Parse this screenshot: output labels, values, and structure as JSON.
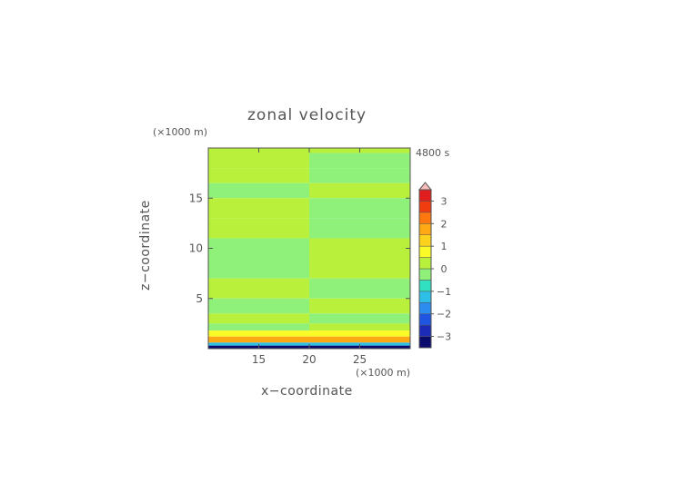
{
  "chart_data": {
    "type": "heatmap",
    "title": "zonal velocity",
    "time_label": "4800 s",
    "xlabel": "x−coordinate",
    "ylabel": "z−coordinate",
    "x_unit": "(×1000 m)",
    "y_unit": "(×1000 m)",
    "xlim": [
      10,
      30
    ],
    "ylim": [
      0,
      20
    ],
    "x_ticks": [
      15,
      20,
      25
    ],
    "y_ticks": [
      5,
      10,
      15
    ],
    "x_tick_labels": [
      "15",
      "20",
      "25"
    ],
    "y_tick_labels": [
      "5",
      "10",
      "15"
    ],
    "colorbar": {
      "min": -3.5,
      "max": 3.5,
      "step": 0.5,
      "extend": "max",
      "tick_values": [
        3,
        2,
        1,
        0,
        -1,
        -2,
        -3
      ],
      "tick_labels": [
        "3",
        "2",
        "1",
        "0",
        "−1",
        "−2",
        "−3"
      ],
      "colors": [
        "#0b0b6e",
        "#1c2bb8",
        "#1f55e0",
        "#2d8cf0",
        "#2dbfe8",
        "#31e0c0",
        "#8ff07a",
        "#b8f03c",
        "#fafa28",
        "#ffd21e",
        "#ffaa14",
        "#ff780f",
        "#f03c0f",
        "#e01e1e",
        "#f08c8c",
        "#f7bcbc"
      ]
    },
    "bands_z": [
      {
        "z": [
          19.5,
          20.0
        ],
        "left": 0.0,
        "right": 0.0
      },
      {
        "z": [
          18.0,
          19.5
        ],
        "left": 0.3,
        "right": -0.2
      },
      {
        "z": [
          16.5,
          18.0
        ],
        "left": 0.3,
        "right": -0.2
      },
      {
        "z": [
          15.0,
          16.5
        ],
        "left": -0.2,
        "right": 0.3
      },
      {
        "z": [
          13.0,
          15.0
        ],
        "left": 0.3,
        "right": -0.2
      },
      {
        "z": [
          11.0,
          13.0
        ],
        "left": 0.3,
        "right": -0.2
      },
      {
        "z": [
          9.0,
          11.0
        ],
        "left": -0.2,
        "right": 0.3
      },
      {
        "z": [
          7.0,
          9.0
        ],
        "left": -0.2,
        "right": 0.3
      },
      {
        "z": [
          5.0,
          7.0
        ],
        "left": 0.3,
        "right": -0.2
      },
      {
        "z": [
          3.5,
          5.0
        ],
        "left": -0.2,
        "right": 0.2
      },
      {
        "z": [
          2.5,
          3.5
        ],
        "left": 0.2,
        "right": -0.2
      },
      {
        "z": [
          1.8,
          2.5
        ],
        "left": -0.3,
        "right": 0.2
      },
      {
        "z": [
          1.2,
          1.8
        ],
        "left": 0.8,
        "right": 0.8
      },
      {
        "z": [
          0.6,
          1.2
        ],
        "left": 1.5,
        "right": 1.5
      },
      {
        "z": [
          0.3,
          0.6
        ],
        "left": -1.5,
        "right": -1.5
      },
      {
        "z": [
          0.0,
          0.3
        ],
        "left": -3.2,
        "right": -3.2
      }
    ]
  }
}
